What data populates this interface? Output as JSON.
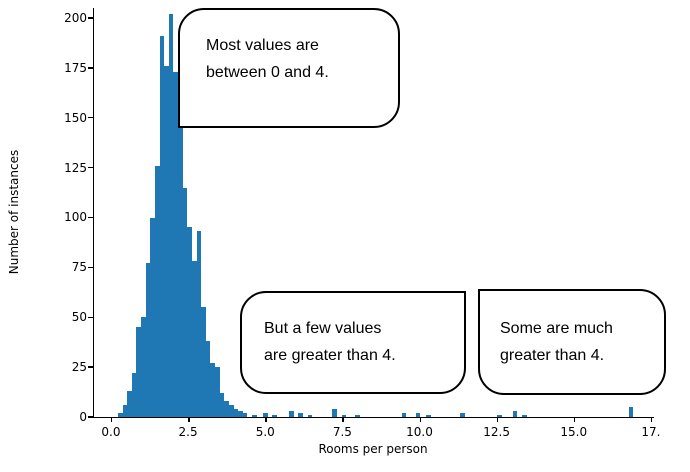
{
  "figure": {
    "xlabel": "Rooms per person",
    "ylabel": "Number of instances"
  },
  "callouts": [
    {
      "lines": [
        "Most values are",
        "between 0 and 4."
      ]
    },
    {
      "lines": [
        "But a few values",
        "are greater than 4."
      ]
    },
    {
      "lines": [
        "Some are much",
        "greater than 4."
      ]
    }
  ],
  "chart_data": {
    "type": "bar",
    "subtype": "histogram",
    "title": "",
    "xlabel": "Rooms per person",
    "ylabel": "Number of instances",
    "bar_color": "#1f77b4",
    "xlim": [
      -0.55,
      17.6
    ],
    "ylim": [
      0,
      205
    ],
    "grid": false,
    "legend": "none",
    "x_ticks": [
      {
        "v": 0,
        "label": "0.0"
      },
      {
        "v": 2.5,
        "label": "2.5"
      },
      {
        "v": 5.0,
        "label": "5.0"
      },
      {
        "v": 7.5,
        "label": "7.5"
      },
      {
        "v": 10.0,
        "label": "10.0"
      },
      {
        "v": 12.5,
        "label": "12.5"
      },
      {
        "v": 15.0,
        "label": "15.0"
      },
      {
        "v": 17.5,
        "label": "17."
      }
    ],
    "y_ticks": [
      0,
      25,
      50,
      75,
      100,
      125,
      150,
      175,
      200
    ],
    "bin_width": 0.15,
    "bins": [
      {
        "x": 0.3,
        "n": 2
      },
      {
        "x": 0.45,
        "n": 6
      },
      {
        "x": 0.6,
        "n": 13
      },
      {
        "x": 0.75,
        "n": 22
      },
      {
        "x": 0.9,
        "n": 45
      },
      {
        "x": 1.05,
        "n": 50
      },
      {
        "x": 1.2,
        "n": 77
      },
      {
        "x": 1.35,
        "n": 100
      },
      {
        "x": 1.5,
        "n": 126
      },
      {
        "x": 1.65,
        "n": 191
      },
      {
        "x": 1.8,
        "n": 176
      },
      {
        "x": 1.95,
        "n": 202
      },
      {
        "x": 2.1,
        "n": 173
      },
      {
        "x": 2.25,
        "n": 166
      },
      {
        "x": 2.4,
        "n": 115
      },
      {
        "x": 2.55,
        "n": 95
      },
      {
        "x": 2.7,
        "n": 78
      },
      {
        "x": 2.85,
        "n": 93
      },
      {
        "x": 3.0,
        "n": 55
      },
      {
        "x": 3.15,
        "n": 38
      },
      {
        "x": 3.3,
        "n": 27
      },
      {
        "x": 3.45,
        "n": 25
      },
      {
        "x": 3.6,
        "n": 12
      },
      {
        "x": 3.75,
        "n": 8
      },
      {
        "x": 3.9,
        "n": 6
      },
      {
        "x": 4.05,
        "n": 4
      },
      {
        "x": 4.2,
        "n": 3
      },
      {
        "x": 4.35,
        "n": 2
      },
      {
        "x": 4.65,
        "n": 1
      },
      {
        "x": 5.0,
        "n": 2
      },
      {
        "x": 5.3,
        "n": 1
      },
      {
        "x": 5.85,
        "n": 3
      },
      {
        "x": 6.15,
        "n": 2
      },
      {
        "x": 6.45,
        "n": 1
      },
      {
        "x": 7.25,
        "n": 4
      },
      {
        "x": 7.55,
        "n": 1
      },
      {
        "x": 8.0,
        "n": 1
      },
      {
        "x": 9.5,
        "n": 2
      },
      {
        "x": 9.95,
        "n": 2
      },
      {
        "x": 10.3,
        "n": 1
      },
      {
        "x": 11.4,
        "n": 2
      },
      {
        "x": 12.6,
        "n": 1
      },
      {
        "x": 13.1,
        "n": 3
      },
      {
        "x": 13.4,
        "n": 1
      },
      {
        "x": 16.85,
        "n": 5
      }
    ]
  }
}
